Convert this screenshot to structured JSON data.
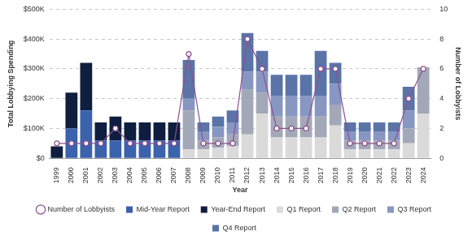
{
  "chart_data": {
    "type": "bar",
    "x_label": "Year",
    "y_label": "Total Lobbying Spending",
    "y2_label": "Number of Lobbyists",
    "categories": [
      "1999",
      "2000",
      "2001",
      "2002",
      "2003",
      "2004",
      "2005",
      "2006",
      "2007",
      "2008",
      "2009",
      "2010",
      "2011",
      "2012",
      "2013",
      "2014",
      "2015",
      "2016",
      "2017",
      "2018",
      "2019",
      "2020",
      "2021",
      "2022",
      "2023",
      "2024"
    ],
    "stacked": true,
    "grid": true,
    "legend": "bottom",
    "ylim": [
      0,
      500000
    ],
    "yticks": [
      {
        "value": 0,
        "label": "$0"
      },
      {
        "value": 100000,
        "label": "$100K"
      },
      {
        "value": 200000,
        "label": "$200K"
      },
      {
        "value": 300000,
        "label": "$300K"
      },
      {
        "value": 400000,
        "label": "$400K"
      },
      {
        "value": 500000,
        "label": "$500K"
      }
    ],
    "y2lim": [
      0,
      10
    ],
    "y2ticks": [
      0,
      2,
      4,
      6,
      8,
      10
    ],
    "series": [
      {
        "name": "Mid-Year Report",
        "type": "bar",
        "color": "#3a62ad",
        "values": [
          0,
          100000,
          160000,
          60000,
          60000,
          60000,
          60000,
          60000,
          60000,
          0,
          0,
          0,
          0,
          0,
          0,
          0,
          0,
          0,
          0,
          0,
          0,
          0,
          0,
          0,
          0,
          0
        ]
      },
      {
        "name": "Year-End Report",
        "type": "bar",
        "color": "#0f1d3f",
        "values": [
          40000,
          120000,
          160000,
          60000,
          80000,
          60000,
          60000,
          60000,
          60000,
          0,
          0,
          0,
          0,
          0,
          0,
          0,
          0,
          0,
          0,
          0,
          0,
          0,
          0,
          0,
          0,
          0
        ]
      },
      {
        "name": "Q1 Report",
        "type": "bar",
        "color": "#dadada",
        "values": [
          0,
          0,
          0,
          0,
          0,
          0,
          0,
          0,
          0,
          30000,
          30000,
          35000,
          40000,
          80000,
          150000,
          70000,
          70000,
          70000,
          70000,
          110000,
          30000,
          30000,
          30000,
          30000,
          50000,
          150000
        ]
      },
      {
        "name": "Q2 Report",
        "type": "bar",
        "color": "#a3a8b8",
        "values": [
          0,
          0,
          0,
          0,
          0,
          0,
          0,
          0,
          0,
          130000,
          30000,
          35000,
          40000,
          150000,
          70000,
          70000,
          70000,
          70000,
          70000,
          70000,
          30000,
          30000,
          30000,
          30000,
          50000,
          155000
        ]
      },
      {
        "name": "Q3 Report",
        "type": "bar",
        "color": "#8797c2",
        "values": [
          0,
          0,
          0,
          0,
          0,
          0,
          0,
          0,
          0,
          40000,
          30000,
          35000,
          40000,
          60000,
          70000,
          70000,
          70000,
          70000,
          70000,
          70000,
          30000,
          30000,
          30000,
          30000,
          60000,
          0
        ]
      },
      {
        "name": "Q4 Report",
        "type": "bar",
        "color": "#5a74a8",
        "values": [
          0,
          0,
          0,
          0,
          0,
          0,
          0,
          0,
          0,
          130000,
          30000,
          35000,
          40000,
          130000,
          70000,
          70000,
          70000,
          70000,
          150000,
          70000,
          30000,
          30000,
          30000,
          30000,
          80000,
          0
        ]
      },
      {
        "name": "Number of Lobbyists",
        "type": "line",
        "axis": "y2",
        "color": "#8e4f8e",
        "marker": "circle",
        "values": [
          1,
          1,
          1,
          1,
          2,
          1,
          1,
          1,
          1,
          7,
          1,
          1,
          1,
          8,
          6,
          2,
          2,
          2,
          6,
          6,
          1,
          1,
          1,
          1,
          4,
          6
        ]
      }
    ]
  }
}
